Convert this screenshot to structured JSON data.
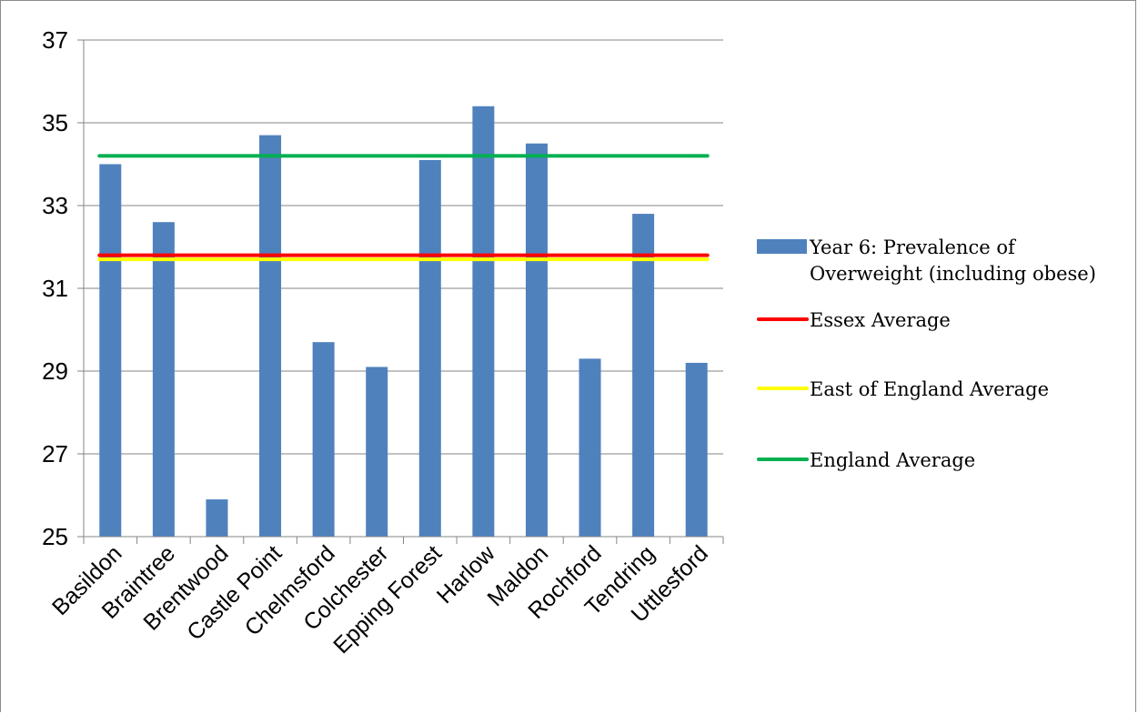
{
  "chart_data": {
    "type": "bar",
    "title": "",
    "xlabel": "",
    "ylabel": "",
    "ylim": [
      25,
      37
    ],
    "yticks": [
      25,
      27,
      29,
      31,
      33,
      35,
      37
    ],
    "grid": true,
    "legend_position": "right",
    "categories": [
      "Basildon",
      "Braintree",
      "Brentwood",
      "Castle Point",
      "Chelmsford",
      "Colchester",
      "Epping Forest",
      "Harlow",
      "Maldon",
      "Rochford",
      "Tendring",
      "Uttlesford"
    ],
    "series": [
      {
        "name": "Year 6: Prevalence of Overweight (including obese)",
        "legend_lines": [
          "Year 6: Prevalence of",
          "Overweight (including obese)"
        ],
        "type": "bar",
        "color": "#4f81bd",
        "values": [
          34.0,
          32.6,
          25.9,
          34.7,
          29.7,
          29.1,
          34.1,
          35.4,
          34.5,
          29.3,
          32.8,
          29.2
        ]
      },
      {
        "name": "Essex Average",
        "legend_lines": [
          "Essex Average"
        ],
        "type": "line",
        "color": "#ff0000",
        "value": 31.8
      },
      {
        "name": "East of England Average",
        "legend_lines": [
          "East of England Average"
        ],
        "type": "line",
        "color": "#ffff00",
        "value": 31.7
      },
      {
        "name": "England Average",
        "legend_lines": [
          "England Average"
        ],
        "type": "line",
        "color": "#00b050",
        "value": 34.2
      }
    ]
  }
}
